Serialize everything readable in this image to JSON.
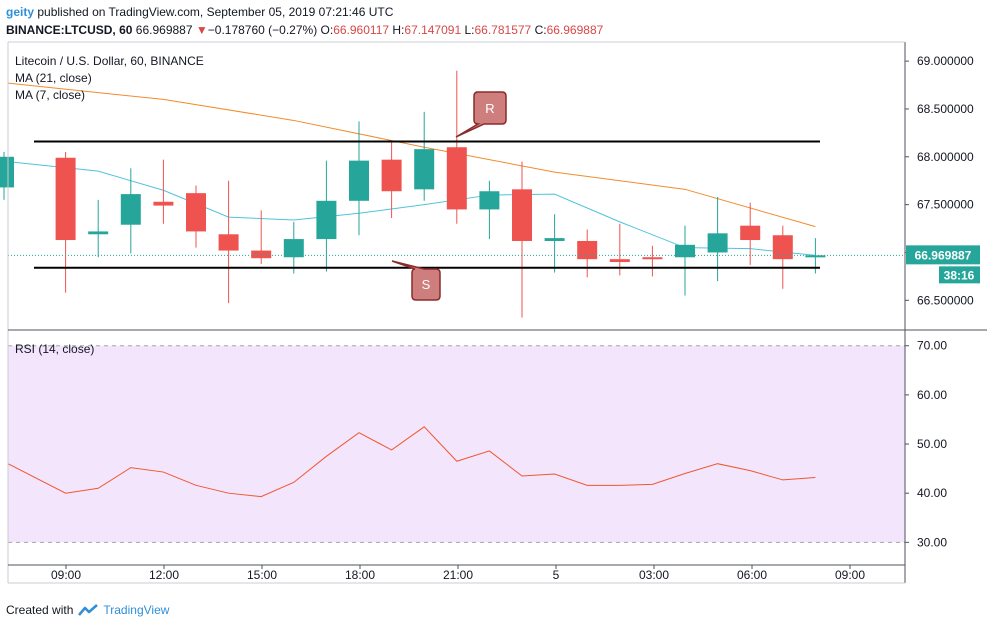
{
  "header": {
    "user": "geity",
    "published_text": "published on TradingView.com, September 05, 2019 07:21:46 UTC",
    "symbol_line": "BINANCE:LTCUSD, 60",
    "last": "66.969887",
    "change_arrow": "▼",
    "change": "−0.178760 (−0.27%)",
    "o_label": "O:",
    "o_val": "66.960117",
    "h_label": "H:",
    "h_val": "67.147091",
    "l_label": "L:",
    "l_val": "66.781577",
    "c_label": "C:",
    "c_val": "66.969887"
  },
  "legend": {
    "title": "Litecoin / U.S. Dollar, 60, BINANCE",
    "ma21": "MA (21, close)",
    "ma7": "MA (7, close)",
    "rsi": "RSI (14, close)"
  },
  "price_badge": "66.969887",
  "countdown_badge": "38:16",
  "annotations": {
    "resistance": "R",
    "support": "S"
  },
  "footer": {
    "created_with": "Created with",
    "brand": "TradingView"
  },
  "colors": {
    "up": "#26a69a",
    "down": "#ef5350",
    "ma21": "#f28b2d",
    "ma7": "#4fc3dc",
    "rsi": "#f0572f",
    "rsi_bg": "#f3e5fb",
    "label_box": "#cf7e7e"
  },
  "chart_data": [
    {
      "type": "candlestick",
      "title": "Litecoin / U.S. Dollar, 60, BINANCE",
      "x_ticks": [
        "09:00",
        "12:00",
        "15:00",
        "18:00",
        "21:00",
        "5",
        "03:00",
        "06:00",
        "09:00"
      ],
      "y_ticks": [
        "66.500000",
        "67.000000",
        "67.500000",
        "68.000000",
        "68.500000",
        "69.000000"
      ],
      "ylim": [
        66.2,
        69.2
      ],
      "candles": [
        {
          "o": 67.68,
          "h": 68.05,
          "l": 67.55,
          "c": 68.0
        },
        {
          "o": 67.99,
          "h": 68.05,
          "l": 66.58,
          "c": 67.13
        },
        {
          "o": 67.19,
          "h": 67.55,
          "l": 66.95,
          "c": 67.22
        },
        {
          "o": 67.29,
          "h": 67.88,
          "l": 66.99,
          "c": 67.61
        },
        {
          "o": 67.53,
          "h": 67.97,
          "l": 67.3,
          "c": 67.49
        },
        {
          "o": 67.62,
          "h": 67.7,
          "l": 67.05,
          "c": 67.22
        },
        {
          "o": 67.19,
          "h": 67.75,
          "l": 66.47,
          "c": 67.02
        },
        {
          "o": 67.02,
          "h": 67.44,
          "l": 66.88,
          "c": 66.94
        },
        {
          "o": 66.95,
          "h": 67.32,
          "l": 66.78,
          "c": 67.14
        },
        {
          "o": 67.14,
          "h": 67.96,
          "l": 66.8,
          "c": 67.54
        },
        {
          "o": 67.54,
          "h": 68.37,
          "l": 67.18,
          "c": 67.96
        },
        {
          "o": 67.97,
          "h": 68.17,
          "l": 67.36,
          "c": 67.64
        },
        {
          "o": 67.66,
          "h": 68.47,
          "l": 67.54,
          "c": 68.08
        },
        {
          "o": 68.1,
          "h": 68.9,
          "l": 67.3,
          "c": 67.45
        },
        {
          "o": 67.45,
          "h": 67.75,
          "l": 67.14,
          "c": 67.64
        },
        {
          "o": 67.66,
          "h": 67.95,
          "l": 66.32,
          "c": 67.12
        },
        {
          "o": 67.12,
          "h": 67.4,
          "l": 66.79,
          "c": 67.15
        },
        {
          "o": 67.12,
          "h": 67.24,
          "l": 66.74,
          "c": 66.93
        },
        {
          "o": 66.93,
          "h": 67.3,
          "l": 66.76,
          "c": 66.9
        },
        {
          "o": 66.95,
          "h": 67.07,
          "l": 66.75,
          "c": 66.93
        },
        {
          "o": 66.95,
          "h": 67.28,
          "l": 66.55,
          "c": 67.08
        },
        {
          "o": 67.0,
          "h": 67.58,
          "l": 66.7,
          "c": 67.2
        },
        {
          "o": 67.28,
          "h": 67.52,
          "l": 66.87,
          "c": 67.13
        },
        {
          "o": 67.18,
          "h": 67.28,
          "l": 66.62,
          "c": 66.93
        },
        {
          "o": 66.96,
          "h": 67.15,
          "l": 66.78,
          "c": 66.97
        }
      ],
      "ma21": [
        [
          0,
          68.77
        ],
        [
          4,
          68.6
        ],
        [
          8,
          68.38
        ],
        [
          12,
          68.1
        ],
        [
          16,
          67.84
        ],
        [
          20,
          67.66
        ],
        [
          24,
          67.27
        ]
      ],
      "ma7": [
        [
          0,
          67.95
        ],
        [
          2,
          67.85
        ],
        [
          4,
          67.65
        ],
        [
          6,
          67.37
        ],
        [
          8,
          67.34
        ],
        [
          10,
          67.41
        ],
        [
          12,
          67.5
        ],
        [
          14,
          67.6
        ],
        [
          16,
          67.61
        ],
        [
          18,
          67.32
        ],
        [
          20,
          67.05
        ],
        [
          22,
          67.04
        ],
        [
          24,
          66.97
        ]
      ],
      "resistance": 68.16,
      "support": 66.84,
      "last_price": 66.969887
    },
    {
      "type": "line",
      "title": "RSI (14, close)",
      "y_ticks": [
        "30.00",
        "40.00",
        "50.00",
        "60.00",
        "70.00"
      ],
      "ylim": [
        26,
        73
      ],
      "band": [
        30,
        70
      ],
      "x": [
        0,
        1,
        2,
        3,
        4,
        5,
        6,
        7,
        8,
        9,
        10,
        11,
        12,
        13,
        14,
        15,
        16,
        17,
        18,
        19,
        20,
        21,
        22,
        23,
        24
      ],
      "values": [
        46.0,
        40.0,
        41.0,
        45.2,
        44.3,
        41.6,
        40.0,
        39.3,
        42.2,
        47.5,
        52.3,
        48.8,
        53.5,
        46.5,
        48.6,
        43.5,
        43.9,
        41.6,
        41.6,
        41.8,
        44.0,
        46.0,
        44.6,
        42.7,
        43.2
      ]
    }
  ]
}
